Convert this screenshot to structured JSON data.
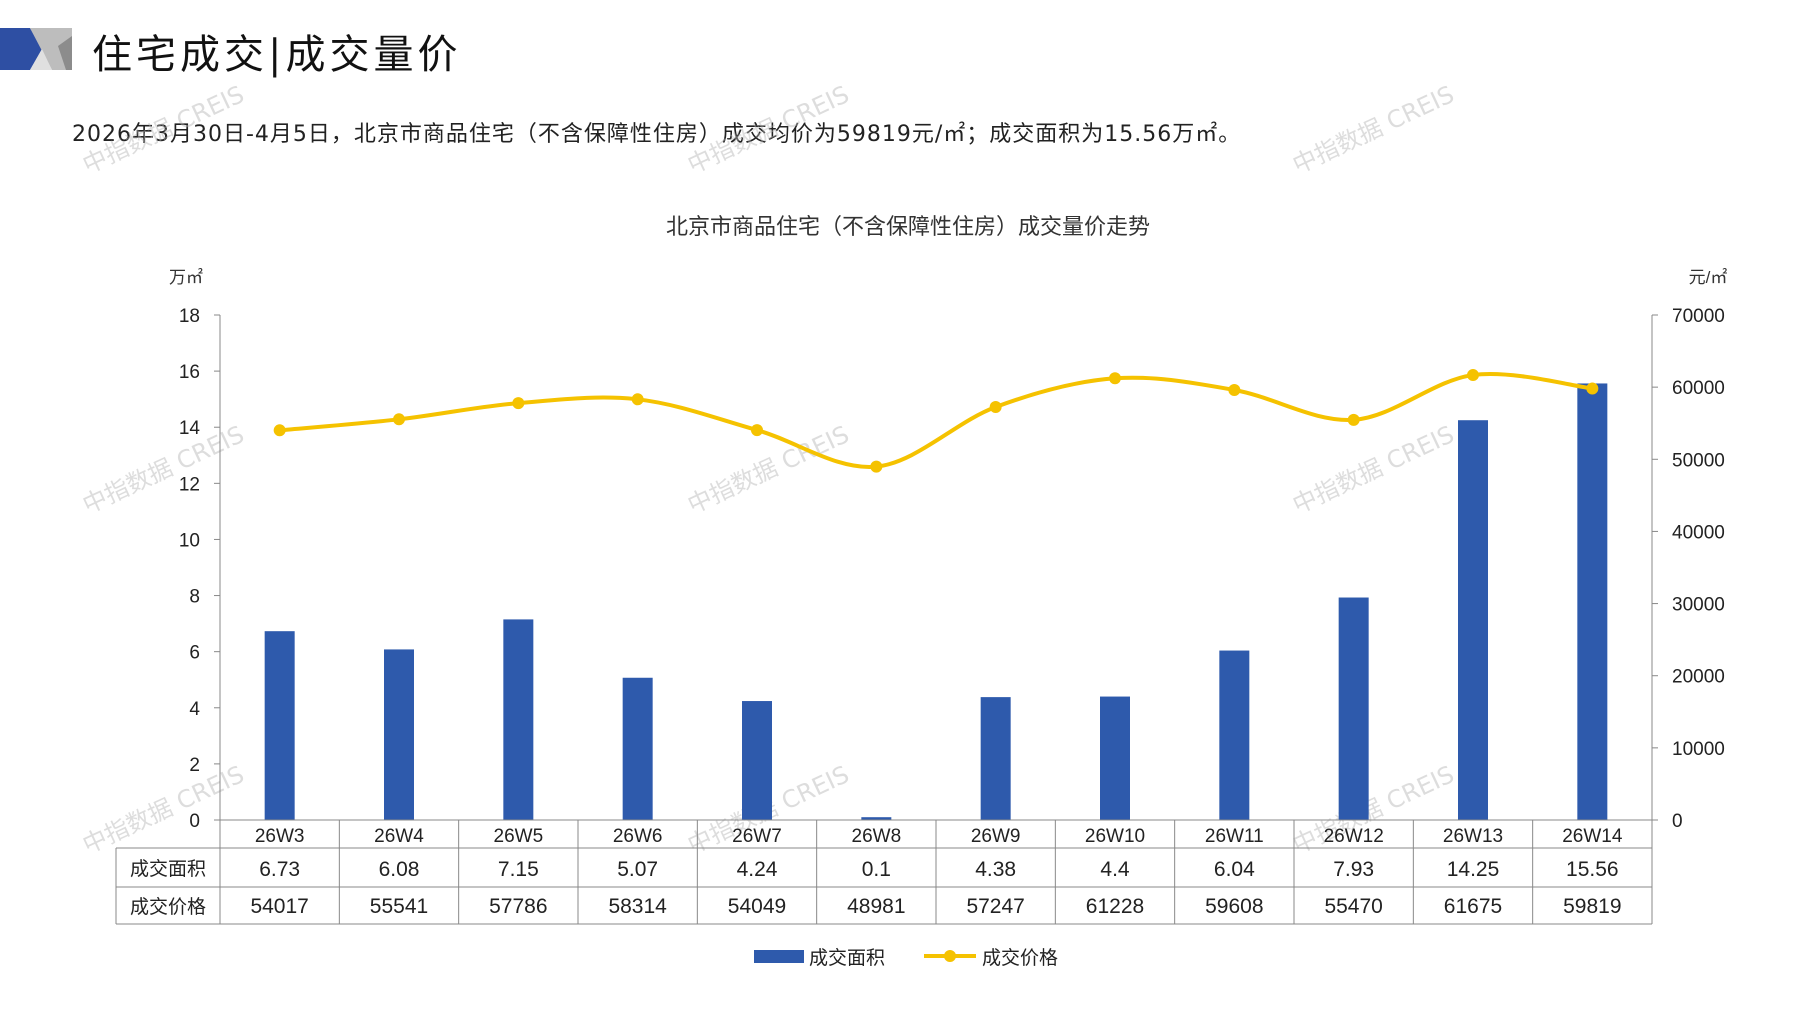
{
  "header": {
    "title": "住宅成交|成交量价",
    "subtitle": "2026年3月30日-4月5日，北京市商品住宅（不含保障性住房）成交均价为59819元/㎡；成交面积为15.56万㎡。"
  },
  "watermark": "中指数据 CREIS",
  "colors": {
    "bar": "#2E5AAC",
    "line": "#F5C200",
    "brand_blue": "#2E4FA3",
    "brand_gray": "#BDBDBD"
  },
  "chart_data": {
    "type": "bar+line",
    "title": "北京市商品住宅（不含保障性住房）成交量价走势",
    "categories": [
      "26W3",
      "26W4",
      "26W5",
      "26W6",
      "26W7",
      "26W8",
      "26W9",
      "26W10",
      "26W11",
      "26W12",
      "26W13",
      "26W14"
    ],
    "series": [
      {
        "name": "成交面积",
        "type": "bar",
        "axis": "left",
        "values": [
          6.73,
          6.08,
          7.15,
          5.07,
          4.24,
          0.1,
          4.38,
          4.4,
          6.04,
          7.93,
          14.25,
          15.56
        ],
        "labels": [
          "6.73",
          "6.08",
          "7.15",
          "5.07",
          "4.24",
          "0.1",
          "4.38",
          "4.4",
          "6.04",
          "7.93",
          "14.25",
          "15.56"
        ]
      },
      {
        "name": "成交价格",
        "type": "line",
        "axis": "right",
        "values": [
          54017,
          55541,
          57786,
          58314,
          54049,
          48981,
          57247,
          61228,
          59608,
          55470,
          61675,
          59819
        ],
        "labels": [
          "54017",
          "55541",
          "57786",
          "58314",
          "54049",
          "48981",
          "57247",
          "61228",
          "59608",
          "55470",
          "61675",
          "59819"
        ]
      }
    ],
    "y_left": {
      "label": "万㎡",
      "range": [
        0,
        18
      ],
      "ticks": [
        "0",
        "2",
        "4",
        "6",
        "8",
        "10",
        "12",
        "14",
        "16",
        "18"
      ]
    },
    "y_right": {
      "label": "元/㎡",
      "range": [
        0,
        70000
      ],
      "ticks": [
        "0",
        "10000",
        "20000",
        "30000",
        "40000",
        "50000",
        "60000",
        "70000"
      ]
    },
    "legend_position": "bottom",
    "data_table": true
  }
}
